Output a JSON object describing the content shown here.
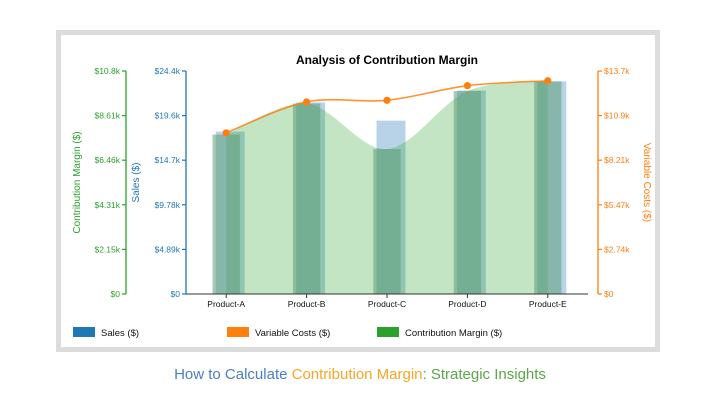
{
  "colors": {
    "sales": "#1f77b4",
    "variable_costs": "#ff7f0e",
    "contribution_margin": "#2ca02c",
    "sales_bar_fill": "#b8d2e8",
    "margin_area_fill": "#cfe8c6",
    "caption_blue": "#4a7fc1",
    "caption_orange": "#f5a623",
    "caption_green": "#5aa64a"
  },
  "caption": {
    "part1": "How to Calculate ",
    "part2": "Contribution Margin",
    "part3": ": Strategic Insights"
  },
  "chart_data": {
    "type": "bar",
    "title": "Analysis of Contribution Margin",
    "categories": [
      "Product-A",
      "Product-B",
      "Product-C",
      "Product-D",
      "Product-E"
    ],
    "series": [
      {
        "name": "Sales ($)",
        "type": "bar",
        "axis": "sales",
        "values": [
          17800,
          21000,
          19000,
          22300,
          23300
        ]
      },
      {
        "name": "Variable Costs ($)",
        "type": "line",
        "axis": "variable_costs",
        "values": [
          9900,
          11800,
          11900,
          12800,
          13100
        ]
      },
      {
        "name": "Contribution Margin ($)",
        "type": "area",
        "axis": "contribution_margin",
        "values": [
          7700,
          9200,
          7000,
          9800,
          10300
        ]
      }
    ],
    "axes": {
      "contribution_margin": {
        "label": "Contribution Margin ($)",
        "range": [
          0,
          10770
        ],
        "ticks": [
          "$0",
          "$2.15k",
          "$4.31k",
          "$6.46k",
          "$8.61k",
          "$10.8k"
        ]
      },
      "sales": {
        "label": "Sales ($)",
        "range": [
          0,
          24440
        ],
        "ticks": [
          "$0",
          "$4.89k",
          "$9.78k",
          "$14.7k",
          "$19.6k",
          "$24.4k"
        ]
      },
      "variable_costs": {
        "label": "Variable Costs ($)",
        "range": [
          0,
          13700
        ],
        "ticks": [
          "$0",
          "$2.74k",
          "$5.47k",
          "$8.21k",
          "$10.9k",
          "$13.7k"
        ]
      }
    },
    "grid": false,
    "legend_position": "bottom"
  }
}
